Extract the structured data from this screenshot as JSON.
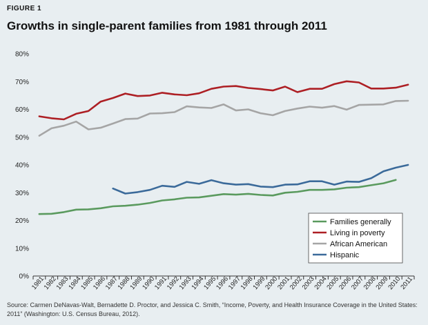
{
  "header": {
    "figure_label": "FIGURE 1",
    "title": "Growths in single-parent families from 1981 through 2011"
  },
  "source": "Source: Carmen DeNavas-Walt, Bernadette D. Proctor, and Jessica C. Smith, “Income, Poverty, and Health Insurance Coverage in the United States: 2011” (Washington: U.S. Census Bureau, 2012).",
  "chart_data": {
    "type": "line",
    "title": "Growths in single-parent families from 1981 through 2011",
    "xlabel": "",
    "ylabel": "",
    "ylim": [
      0,
      80
    ],
    "yticks": [
      "0%",
      "10%",
      "20%",
      "30%",
      "40%",
      "50%",
      "60%",
      "70%",
      "80%"
    ],
    "grid": false,
    "legend_position": "bottom-right",
    "categories": [
      "1981",
      "1982",
      "1983",
      "1984",
      "1985",
      "1986",
      "1987",
      "1988",
      "1989",
      "1990",
      "1991",
      "1992",
      "1993",
      "1994",
      "1995",
      "1996",
      "1997",
      "1998",
      "1999",
      "2000",
      "2001",
      "2002",
      "2003",
      "2004",
      "2005",
      "2006",
      "2007",
      "2008",
      "2009",
      "2010",
      "2011"
    ],
    "series": [
      {
        "name": "Families generally",
        "color": "#5a9a5e",
        "values": [
          22.3,
          22.4,
          23.0,
          23.9,
          24.0,
          24.4,
          25.1,
          25.3,
          25.7,
          26.3,
          27.2,
          27.6,
          28.2,
          28.3,
          28.9,
          29.5,
          29.3,
          29.6,
          29.2,
          29.0,
          30.0,
          30.3,
          31.0,
          31.0,
          31.2,
          31.8,
          32.0,
          32.7,
          33.4,
          34.6,
          null
        ]
      },
      {
        "name": "Living in poverty",
        "color": "#ad1f24",
        "values": [
          57.5,
          56.8,
          56.4,
          58.4,
          59.4,
          62.8,
          64.1,
          65.7,
          64.8,
          65.0,
          66.0,
          65.4,
          65.1,
          65.8,
          67.4,
          68.2,
          68.4,
          67.7,
          67.3,
          66.8,
          68.2,
          66.2,
          67.4,
          67.4,
          69.1,
          70.1,
          69.7,
          67.5,
          67.5,
          67.8,
          68.9
        ]
      },
      {
        "name": "African American",
        "color": "#a5a5a5",
        "values": [
          50.5,
          53.2,
          54.1,
          55.6,
          52.8,
          53.4,
          54.9,
          56.5,
          56.7,
          58.5,
          58.6,
          59.0,
          61.1,
          60.7,
          60.5,
          61.8,
          59.6,
          60.0,
          58.6,
          57.9,
          59.4,
          60.3,
          61.0,
          60.6,
          61.2,
          59.9,
          61.6,
          61.7,
          61.8,
          63.0,
          63.1
        ]
      },
      {
        "name": "Hispanic",
        "color": "#3b6a9a",
        "values": [
          null,
          null,
          null,
          null,
          null,
          null,
          31.5,
          29.7,
          30.2,
          31.0,
          32.5,
          32.1,
          33.9,
          33.2,
          34.5,
          33.4,
          32.9,
          33.1,
          32.2,
          32.0,
          32.9,
          33.0,
          34.1,
          34.1,
          32.9,
          34.0,
          33.9,
          35.2,
          37.7,
          39.0,
          40.0
        ]
      }
    ]
  }
}
